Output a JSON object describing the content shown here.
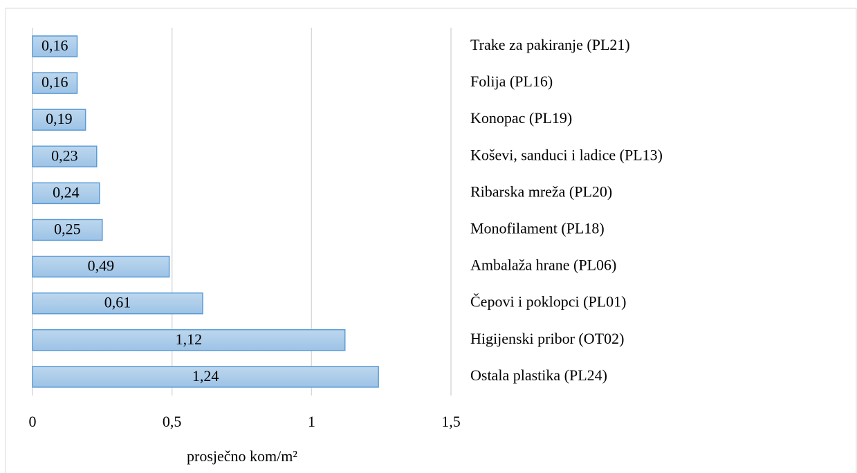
{
  "chart_data": {
    "type": "hbar",
    "categories": [
      "Trake za pakiranje (PL21)",
      "Folija (PL16)",
      "Konopac (PL19)",
      "Koševi, sanduci i ladice (PL13)",
      "Ribarska mreža (PL20)",
      "Monofilament (PL18)",
      "Ambalaža hrane (PL06)",
      "Čepovi i poklopci (PL01)",
      "Higijenski pribor (OT02)",
      "Ostala plastika (PL24)"
    ],
    "values": [
      0.16,
      0.16,
      0.19,
      0.23,
      0.24,
      0.25,
      0.49,
      0.61,
      1.12,
      1.24
    ],
    "value_labels": [
      "0,16",
      "0,16",
      "0,19",
      "0,23",
      "0,24",
      "0,25",
      "0,49",
      "0,61",
      "1,12",
      "1,24"
    ],
    "color": "#9dc3e6",
    "xlim": [
      0,
      1.5
    ],
    "xticks": [
      0,
      {
        "value": 0.5,
        "label": "0,5"
      },
      1,
      {
        "value": 1.5,
        "label": "1,5"
      }
    ],
    "xlabel": "prosječno kom/m²",
    "grid": true
  }
}
